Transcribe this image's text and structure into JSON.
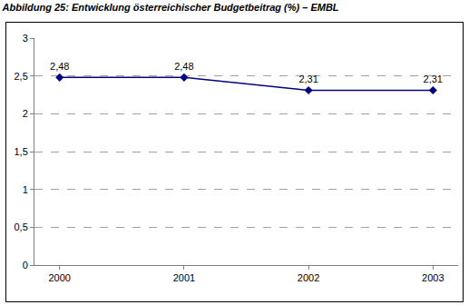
{
  "chart_data": {
    "type": "line",
    "title": "Abbildung 25: Entwicklung österreichischer Budgetbeitrag (%) – EMBL",
    "categories": [
      "2000",
      "2001",
      "2002",
      "2003"
    ],
    "values": [
      2.48,
      2.48,
      2.31,
      2.31
    ],
    "value_labels": [
      "2,48",
      "2,48",
      "2,31",
      "2,31"
    ],
    "data_labels": true,
    "color": "#000080",
    "marker": "diamond",
    "ylim": [
      0,
      3
    ],
    "yticks": [
      0,
      {
        "value": 0.5,
        "label": "0,5"
      },
      1,
      {
        "value": 1.5,
        "label": "1,5"
      },
      2,
      {
        "value": 2.5,
        "label": "2,5"
      },
      3
    ],
    "grid": true
  }
}
